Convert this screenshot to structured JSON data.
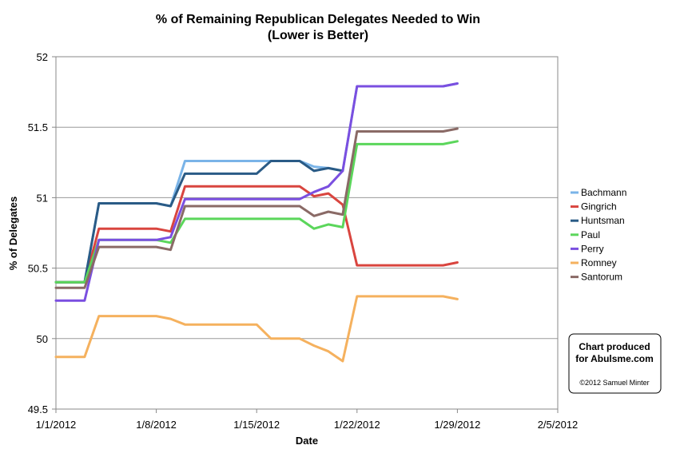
{
  "chart_data": {
    "type": "line",
    "title": "% of Remaining Republican Delegates Needed to Win",
    "subtitle": "(Lower is Better)",
    "xlabel": "Date",
    "ylabel": "% of Delegates",
    "xlim": [
      "1/1/2012",
      "2/5/2012"
    ],
    "ylim": [
      49.5,
      52
    ],
    "x_ticks": [
      "1/1/2012",
      "1/8/2012",
      "1/15/2012",
      "1/22/2012",
      "1/29/2012",
      "2/5/2012"
    ],
    "y_ticks": [
      "49.5",
      "50",
      "50.5",
      "51",
      "51.5",
      "52"
    ],
    "grid": "horizontal",
    "legend_position": "right",
    "series": [
      {
        "name": "Bachmann",
        "color": "#7ab4e8",
        "points": [
          [
            "1/1/2012",
            50.4
          ],
          [
            "1/3/2012",
            50.4
          ],
          [
            "1/4/2012",
            50.96
          ],
          [
            "1/8/2012",
            50.96
          ],
          [
            "1/9/2012",
            50.94
          ],
          [
            "1/10/2012",
            51.26
          ],
          [
            "1/17/2012",
            51.26
          ],
          [
            "1/18/2012",
            51.26
          ],
          [
            "1/19/2012",
            51.22
          ],
          [
            "1/20/2012",
            51.21
          ],
          [
            "1/21/2012",
            51.19
          ],
          [
            "1/22/2012",
            51.79
          ],
          [
            "1/28/2012",
            51.79
          ],
          [
            "1/29/2012",
            51.81
          ]
        ]
      },
      {
        "name": "Gingrich",
        "color": "#d9453f",
        "points": [
          [
            "1/1/2012",
            50.4
          ],
          [
            "1/3/2012",
            50.4
          ],
          [
            "1/4/2012",
            50.78
          ],
          [
            "1/8/2012",
            50.78
          ],
          [
            "1/9/2012",
            50.76
          ],
          [
            "1/10/2012",
            51.08
          ],
          [
            "1/17/2012",
            51.08
          ],
          [
            "1/18/2012",
            51.08
          ],
          [
            "1/19/2012",
            51.01
          ],
          [
            "1/20/2012",
            51.03
          ],
          [
            "1/21/2012",
            50.95
          ],
          [
            "1/22/2012",
            50.52
          ],
          [
            "1/28/2012",
            50.52
          ],
          [
            "1/29/2012",
            50.54
          ]
        ]
      },
      {
        "name": "Huntsman",
        "color": "#2a5b86",
        "points": [
          [
            "1/1/2012",
            50.4
          ],
          [
            "1/3/2012",
            50.4
          ],
          [
            "1/4/2012",
            50.96
          ],
          [
            "1/8/2012",
            50.96
          ],
          [
            "1/9/2012",
            50.94
          ],
          [
            "1/10/2012",
            51.17
          ],
          [
            "1/15/2012",
            51.17
          ],
          [
            "1/16/2012",
            51.26
          ],
          [
            "1/18/2012",
            51.26
          ],
          [
            "1/19/2012",
            51.19
          ],
          [
            "1/20/2012",
            51.21
          ],
          [
            "1/21/2012",
            51.19
          ]
        ]
      },
      {
        "name": "Paul",
        "color": "#5bd65b",
        "points": [
          [
            "1/1/2012",
            50.4
          ],
          [
            "1/3/2012",
            50.4
          ],
          [
            "1/4/2012",
            50.7
          ],
          [
            "1/8/2012",
            50.7
          ],
          [
            "1/9/2012",
            50.68
          ],
          [
            "1/10/2012",
            50.85
          ],
          [
            "1/17/2012",
            50.85
          ],
          [
            "1/18/2012",
            50.85
          ],
          [
            "1/19/2012",
            50.78
          ],
          [
            "1/20/2012",
            50.81
          ],
          [
            "1/21/2012",
            50.79
          ],
          [
            "1/22/2012",
            51.38
          ],
          [
            "1/28/2012",
            51.38
          ],
          [
            "1/29/2012",
            51.4
          ]
        ]
      },
      {
        "name": "Perry",
        "color": "#7a4fe0",
        "points": [
          [
            "1/1/2012",
            50.27
          ],
          [
            "1/3/2012",
            50.27
          ],
          [
            "1/4/2012",
            50.7
          ],
          [
            "1/8/2012",
            50.7
          ],
          [
            "1/9/2012",
            50.72
          ],
          [
            "1/10/2012",
            50.99
          ],
          [
            "1/17/2012",
            50.99
          ],
          [
            "1/18/2012",
            50.99
          ],
          [
            "1/19/2012",
            51.04
          ],
          [
            "1/20/2012",
            51.08
          ],
          [
            "1/21/2012",
            51.19
          ],
          [
            "1/22/2012",
            51.79
          ],
          [
            "1/28/2012",
            51.79
          ],
          [
            "1/29/2012",
            51.81
          ]
        ]
      },
      {
        "name": "Romney",
        "color": "#f5b15e",
        "points": [
          [
            "1/1/2012",
            49.87
          ],
          [
            "1/3/2012",
            49.87
          ],
          [
            "1/4/2012",
            50.16
          ],
          [
            "1/8/2012",
            50.16
          ],
          [
            "1/9/2012",
            50.14
          ],
          [
            "1/10/2012",
            50.1
          ],
          [
            "1/15/2012",
            50.1
          ],
          [
            "1/16/2012",
            50.0
          ],
          [
            "1/18/2012",
            50.0
          ],
          [
            "1/19/2012",
            49.95
          ],
          [
            "1/20/2012",
            49.91
          ],
          [
            "1/21/2012",
            49.84
          ],
          [
            "1/22/2012",
            50.3
          ],
          [
            "1/28/2012",
            50.3
          ],
          [
            "1/29/2012",
            50.28
          ]
        ]
      },
      {
        "name": "Santorum",
        "color": "#8a6a66",
        "points": [
          [
            "1/1/2012",
            50.36
          ],
          [
            "1/3/2012",
            50.36
          ],
          [
            "1/4/2012",
            50.65
          ],
          [
            "1/8/2012",
            50.65
          ],
          [
            "1/9/2012",
            50.63
          ],
          [
            "1/10/2012",
            50.94
          ],
          [
            "1/17/2012",
            50.94
          ],
          [
            "1/18/2012",
            50.94
          ],
          [
            "1/19/2012",
            50.87
          ],
          [
            "1/20/2012",
            50.9
          ],
          [
            "1/21/2012",
            50.88
          ],
          [
            "1/22/2012",
            51.47
          ],
          [
            "1/28/2012",
            51.47
          ],
          [
            "1/29/2012",
            51.49
          ]
        ]
      }
    ]
  },
  "credit": {
    "line1": "Chart produced",
    "line2": "for Abulsme.com",
    "line3": "©2012 Samuel Minter"
  }
}
